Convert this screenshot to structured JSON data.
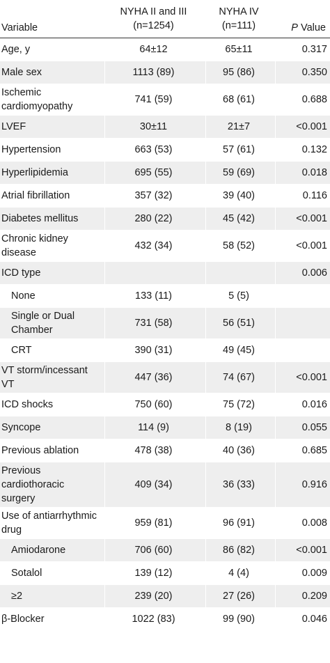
{
  "table": {
    "headers": {
      "variable": "Variable",
      "group1_line1": "NYHA II and III",
      "group1_line2": "(n=1254)",
      "group2_line1": "NYHA IV",
      "group2_line2": "(n=111)",
      "p_italic": "P",
      "p_rest": " Value"
    },
    "rows": [
      {
        "variable": "Age, y",
        "g1": "64±12",
        "g2": "65±11",
        "p": "0.317",
        "shade": false,
        "indent": false,
        "tall": false
      },
      {
        "variable": "Male sex",
        "g1": "1113 (89)",
        "g2": "95 (86)",
        "p": "0.350",
        "shade": true,
        "indent": false,
        "tall": false
      },
      {
        "variable": "Ischemic cardiomyopathy",
        "g1": "741 (59)",
        "g2": "68 (61)",
        "p": "0.688",
        "shade": false,
        "indent": false,
        "tall": true
      },
      {
        "variable": "LVEF",
        "g1": "30±11",
        "g2": "21±7",
        "p": "<0.001",
        "shade": true,
        "indent": false,
        "tall": false
      },
      {
        "variable": "Hypertension",
        "g1": "663 (53)",
        "g2": "57 (61)",
        "p": "0.132",
        "shade": false,
        "indent": false,
        "tall": false
      },
      {
        "variable": "Hyperlipidemia",
        "g1": "695 (55)",
        "g2": "59 (69)",
        "p": "0.018",
        "shade": true,
        "indent": false,
        "tall": false
      },
      {
        "variable": "Atrial fibrillation",
        "g1": "357 (32)",
        "g2": "39 (40)",
        "p": "0.116",
        "shade": false,
        "indent": false,
        "tall": false
      },
      {
        "variable": "Diabetes mellitus",
        "g1": "280 (22)",
        "g2": "45 (42)",
        "p": "<0.001",
        "shade": true,
        "indent": false,
        "tall": false
      },
      {
        "variable": "Chronic kidney disease",
        "g1": "432 (34)",
        "g2": "58 (52)",
        "p": "<0.001",
        "shade": false,
        "indent": false,
        "tall": true
      },
      {
        "variable": "ICD type",
        "g1": "",
        "g2": "",
        "p": "0.006",
        "shade": true,
        "indent": false,
        "tall": false
      },
      {
        "variable": "None",
        "g1": "133 (11)",
        "g2": "5 (5)",
        "p": "",
        "shade": false,
        "indent": true,
        "tall": false
      },
      {
        "variable": "Single or Dual Chamber",
        "g1": "731 (58)",
        "g2": "56 (51)",
        "p": "",
        "shade": true,
        "indent": true,
        "tall": true
      },
      {
        "variable": "CRT",
        "g1": "390 (31)",
        "g2": "49 (45)",
        "p": "",
        "shade": false,
        "indent": true,
        "tall": false
      },
      {
        "variable": "VT storm/incessant VT",
        "g1": "447 (36)",
        "g2": "74 (67)",
        "p": "<0.001",
        "shade": true,
        "indent": false,
        "tall": true
      },
      {
        "variable": "ICD shocks",
        "g1": "750 (60)",
        "g2": "75 (72)",
        "p": "0.016",
        "shade": false,
        "indent": false,
        "tall": false
      },
      {
        "variable": "Syncope",
        "g1": "114 (9)",
        "g2": "8 (19)",
        "p": "0.055",
        "shade": true,
        "indent": false,
        "tall": false
      },
      {
        "variable": "Previous ablation",
        "g1": "478 (38)",
        "g2": "40 (36)",
        "p": "0.685",
        "shade": false,
        "indent": false,
        "tall": false
      },
      {
        "variable": "Previous cardiothoracic surgery",
        "g1": "409 (34)",
        "g2": "36 (33)",
        "p": "0.916",
        "shade": true,
        "indent": false,
        "tall": true
      },
      {
        "variable": "Use of antiarrhythmic drug",
        "g1": "959 (81)",
        "g2": "96 (91)",
        "p": "0.008",
        "shade": false,
        "indent": false,
        "tall": true
      },
      {
        "variable": "Amiodarone",
        "g1": "706 (60)",
        "g2": "86 (82)",
        "p": "<0.001",
        "shade": true,
        "indent": true,
        "tall": false
      },
      {
        "variable": "Sotalol",
        "g1": "139 (12)",
        "g2": "4 (4)",
        "p": "0.009",
        "shade": false,
        "indent": true,
        "tall": false
      },
      {
        "variable": "≥2",
        "g1": "239 (20)",
        "g2": "27 (26)",
        "p": "0.209",
        "shade": true,
        "indent": true,
        "tall": false
      },
      {
        "variable": "β-Blocker",
        "g1": "1022 (83)",
        "g2": "99 (90)",
        "p": "0.046",
        "shade": false,
        "indent": false,
        "tall": false
      }
    ]
  }
}
